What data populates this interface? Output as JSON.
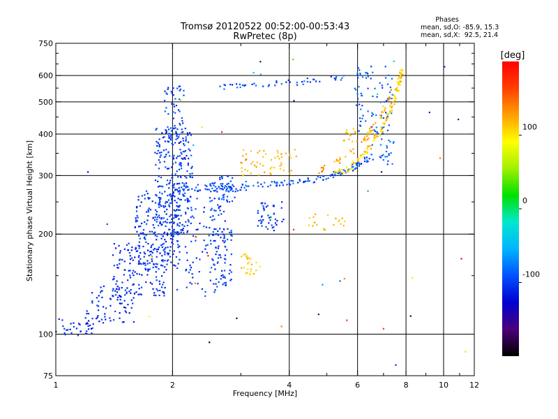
{
  "chart_data": {
    "type": "scatter",
    "title": "Tromsø 20120522 00:52:00-00:53:43",
    "subtitle": "RwPretec (8p)",
    "xlabel": "Frequency [MHz]",
    "ylabel": "Stationary phase Virtual Height [km]",
    "x_scale": "log",
    "y_scale": "log",
    "xlim": [
      1,
      12
    ],
    "ylim": [
      75,
      750
    ],
    "x_ticks": [
      1,
      2,
      4,
      6,
      8,
      10,
      12
    ],
    "y_ticks": [
      75,
      100,
      200,
      300,
      400,
      500,
      600,
      750
    ],
    "x_grid": [
      1,
      2,
      4,
      6,
      8,
      10
    ],
    "y_grid": [
      100,
      200,
      300,
      400,
      500,
      600
    ],
    "grid": true,
    "phases": {
      "title": "Phases",
      "line_o": "mean, sd,O: -85.9, 15.3",
      "line_x": "mean, sd,X:  92.5, 21.4"
    },
    "colorbar": {
      "label": "[deg]",
      "ticks": [
        100,
        0,
        -100
      ],
      "range": [
        -200,
        200
      ],
      "palette": [
        "#000000",
        "#4b007a",
        "#0000d0",
        "#0050ff",
        "#00b4ff",
        "#00e8d0",
        "#00e000",
        "#a0f000",
        "#ffff00",
        "#ffa000",
        "#ff4000",
        "#ff0000"
      ]
    },
    "series": [
      {
        "note_color": "blue",
        "clusters": [
          {
            "x": [
              1.0,
              1.25
            ],
            "y": [
              98,
              112
            ],
            "phase": -110,
            "n": 35
          },
          {
            "x": [
              1.2,
              1.6
            ],
            "y": [
              108,
              140
            ],
            "phase": -110,
            "n": 70
          },
          {
            "x": [
              1.4,
              1.95
            ],
            "y": [
              130,
              190
            ],
            "phase": -108,
            "n": 160
          },
          {
            "x": [
              1.6,
              2.1
            ],
            "y": [
              160,
              270
            ],
            "phase": -105,
            "n": 170
          },
          {
            "x": [
              1.8,
              2.25
            ],
            "y": [
              200,
              420
            ],
            "phase": -100,
            "n": 260
          },
          {
            "x": [
              1.9,
              2.15
            ],
            "y": [
              380,
              560
            ],
            "phase": -100,
            "n": 55
          },
          {
            "x": [
              2.0,
              2.75
            ],
            "y": [
              130,
              260
            ],
            "phase": -102,
            "n": 120
          },
          {
            "x": [
              2.5,
              2.85
            ],
            "y": [
              140,
              210
            ],
            "phase": -100,
            "n": 60
          },
          {
            "x": [
              2.55,
              2.9
            ],
            "y": [
              250,
              300
            ],
            "phase": -95,
            "n": 40
          },
          {
            "x": [
              2.0,
              3.1
            ],
            "y": [
              268,
              285
            ],
            "phase": -95,
            "n": 70
          },
          {
            "x": [
              3.3,
              3.9
            ],
            "y": [
              205,
              250
            ],
            "phase": -105,
            "n": 45
          },
          {
            "x": [
              5.9,
              7.4
            ],
            "y": [
              400,
              640
            ],
            "phase": -90,
            "n": 70
          },
          {
            "x": [
              6.5,
              7.5
            ],
            "y": [
              320,
              420
            ],
            "phase": -85,
            "n": 30
          }
        ],
        "traces": [
          {
            "x": [
              3.0,
              3.5,
              4.0,
              4.5,
              5.0,
              5.5,
              6.0,
              6.5
            ],
            "y": [
              283,
              282,
              285,
              290,
              298,
              308,
              322,
              345
            ],
            "phase": -90,
            "n": 110
          },
          {
            "x": [
              2.6,
              3.0,
              3.5,
              4.0,
              4.5,
              5.0,
              5.5,
              6.0,
              6.5
            ],
            "y": [
              555,
              560,
              565,
              570,
              578,
              585,
              592,
              598,
              605
            ],
            "phase": -95,
            "n": 55
          }
        ]
      },
      {
        "note_color": "yellow-orange",
        "clusters": [
          {
            "x": [
              3.0,
              4.2
            ],
            "y": [
              300,
              360
            ],
            "phase": 120,
            "n": 55
          },
          {
            "x": [
              4.4,
              5.6
            ],
            "y": [
              205,
              230
            ],
            "phase": 120,
            "n": 20
          },
          {
            "x": [
              3.0,
              3.3
            ],
            "y": [
              150,
              175
            ],
            "phase": 110,
            "n": 25
          },
          {
            "x": [
              5.5,
              6.0
            ],
            "y": [
              380,
              420
            ],
            "phase": 115,
            "n": 15
          }
        ],
        "traces": [
          {
            "x": [
              5.2,
              5.8,
              6.3,
              6.8,
              7.2,
              7.5,
              7.7,
              7.8
            ],
            "y": [
              300,
              320,
              355,
              400,
              460,
              520,
              580,
              630
            ],
            "phase": 110,
            "n": 130
          },
          {
            "x": [
              4.8,
              5.4,
              6.0,
              6.5,
              7.0,
              7.4
            ],
            "y": [
              310,
              335,
              365,
              410,
              470,
              540
            ],
            "phase": 125,
            "n": 60
          }
        ]
      }
    ]
  }
}
